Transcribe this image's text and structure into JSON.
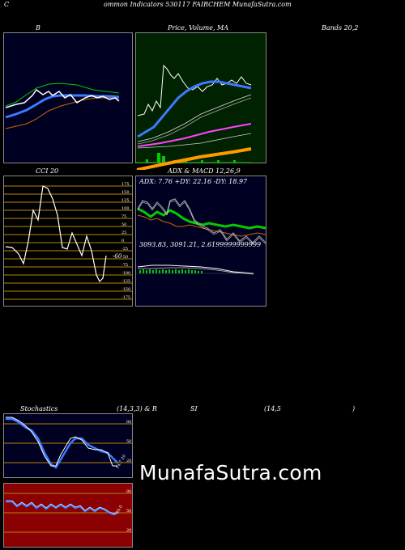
{
  "header": {
    "c_letter": "C",
    "title_rest": "ommon  Indicators 530117 FAIRCHEM MunafaSutra.com"
  },
  "labels": {
    "bands_b": "B",
    "price_volume_ma": "Price, Volume, MA",
    "bands_rest": "Bands 20,2",
    "cci": "CCI 20",
    "adx_macd": "ADX  & MACD 12,26,9",
    "adx_values": "ADX: 7.76  +DY: 22.16  -DY: 18.97",
    "macd_values": "3093.83,  3091.21,  2.6199999999999",
    "cci_current": "-60",
    "stoch_left": "Stochastics",
    "stoch_mid": "(14,3,3) & R",
    "rsi_si": "SI",
    "rsi_params": "(14,5",
    "rsi_close": ")",
    "stoch_current": "14.7 20",
    "rsi_current": "50.0"
  },
  "cci_ticks": [
    "175",
    "150",
    "125",
    "100",
    "75",
    "50",
    "25",
    "0",
    "-25",
    "-50",
    "-75",
    "-100",
    "-125",
    "-150",
    "-175"
  ],
  "stoch_ticks": [
    "80",
    "50",
    "20"
  ],
  "rsi_ticks": [
    "80",
    "50",
    "20"
  ],
  "watermark": "MunafaSutra.com",
  "colors": {
    "bands_bg": "#000022",
    "price_bg": "#002200",
    "cci_bg": "#000000",
    "adx_bg": "#000022",
    "stoch_bg": "#000022",
    "rsi_bg": "#8b0000",
    "grid_orange": "#b8860b",
    "blue_line": "#3b7bff",
    "green_line": "#00cc00"
  }
}
